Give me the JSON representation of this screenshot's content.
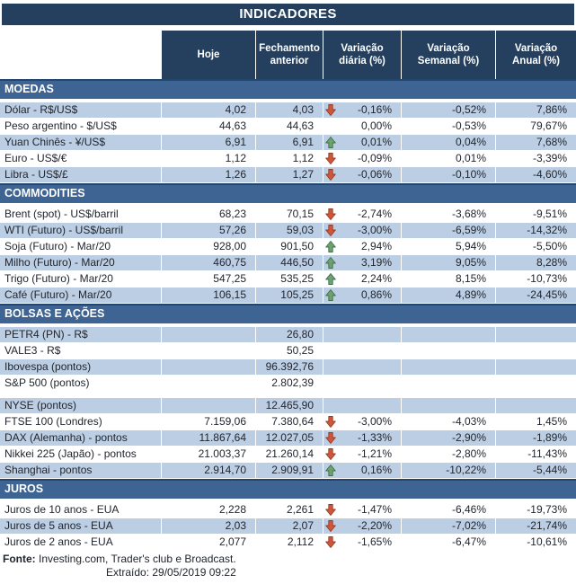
{
  "title": "INDICADORES",
  "columns": [
    "Hoje",
    "Fechamento anterior",
    "Variação diária (%)",
    "Variação Semanal (%)",
    "Variação Anual (%)"
  ],
  "sections": [
    {
      "name": "MOEDAS",
      "rows": [
        {
          "label": "Dólar - R$/US$",
          "hoje": "4,02",
          "fech": "4,03",
          "arrow": "down",
          "dia": "-0,16%",
          "sem": "-0,52%",
          "ano": "7,86%",
          "shade": true
        },
        {
          "label": "Peso argentino - $/US$",
          "hoje": "44,63",
          "fech": "44,63",
          "arrow": "none",
          "dia": "0,00%",
          "sem": "-0,53%",
          "ano": "79,67%",
          "shade": false
        },
        {
          "label": "Yuan Chinês - ¥/US$",
          "hoje": "6,91",
          "fech": "6,91",
          "arrow": "up",
          "dia": "0,01%",
          "sem": "0,04%",
          "ano": "7,68%",
          "shade": true
        },
        {
          "label": "Euro - US$/€",
          "hoje": "1,12",
          "fech": "1,12",
          "arrow": "down",
          "dia": "-0,09%",
          "sem": "0,01%",
          "ano": "-3,39%",
          "shade": false
        },
        {
          "label": "Libra - US$/£",
          "hoje": "1,26",
          "fech": "1,27",
          "arrow": "down",
          "dia": "-0,06%",
          "sem": "-0,10%",
          "ano": "-4,60%",
          "shade": true
        }
      ]
    },
    {
      "name": "COMMODITIES",
      "rows": [
        {
          "label": "Brent (spot) - US$/barril",
          "hoje": "68,23",
          "fech": "70,15",
          "arrow": "down",
          "dia": "-2,74%",
          "sem": "-3,68%",
          "ano": "-9,51%",
          "shade": false
        },
        {
          "label": "WTI (Futuro) - US$/barril",
          "hoje": "57,26",
          "fech": "59,03",
          "arrow": "down",
          "dia": "-3,00%",
          "sem": "-6,59%",
          "ano": "-14,32%",
          "shade": true
        },
        {
          "label": "Soja (Futuro) - Mar/20",
          "hoje": "928,00",
          "fech": "901,50",
          "arrow": "up",
          "dia": "2,94%",
          "sem": "5,94%",
          "ano": "-5,50%",
          "shade": false
        },
        {
          "label": "Milho (Futuro) - Mar/20",
          "hoje": "460,75",
          "fech": "446,50",
          "arrow": "up",
          "dia": "3,19%",
          "sem": "9,05%",
          "ano": "8,28%",
          "shade": true
        },
        {
          "label": "Trigo (Futuro) - Mar/20",
          "hoje": "547,25",
          "fech": "535,25",
          "arrow": "up",
          "dia": "2,24%",
          "sem": "8,15%",
          "ano": "-10,73%",
          "shade": false
        },
        {
          "label": "Café (Futuro) - Mar/20",
          "hoje": "106,15",
          "fech": "105,25",
          "arrow": "up",
          "dia": "0,86%",
          "sem": "4,89%",
          "ano": "-24,45%",
          "shade": true
        }
      ]
    },
    {
      "name": "BOLSAS E AÇÕES",
      "rows": [
        {
          "label": "PETR4 (PN) - R$",
          "hoje": "",
          "fech": "26,80",
          "arrow": "none",
          "dia": "",
          "sem": "",
          "ano": "",
          "shade": true
        },
        {
          "label": "VALE3 - R$",
          "hoje": "",
          "fech": "50,25",
          "arrow": "none",
          "dia": "",
          "sem": "",
          "ano": "",
          "shade": false
        },
        {
          "label": "Ibovespa (pontos)",
          "hoje": "",
          "fech": "96.392,76",
          "arrow": "none",
          "dia": "",
          "sem": "",
          "ano": "",
          "shade": true
        },
        {
          "label": "S&P 500 (pontos)",
          "hoje": "",
          "fech": "2.802,39",
          "arrow": "none",
          "dia": "",
          "sem": "",
          "ano": "",
          "shade": false
        },
        {
          "blank": true
        },
        {
          "label": "NYSE (pontos)",
          "hoje": "",
          "fech": "12.465,90",
          "arrow": "none",
          "dia": "",
          "sem": "",
          "ano": "",
          "shade": true
        },
        {
          "label": "FTSE 100 (Londres)",
          "hoje": "7.159,06",
          "fech": "7.380,64",
          "arrow": "down",
          "dia": "-3,00%",
          "sem": "-4,03%",
          "ano": "1,45%",
          "shade": false
        },
        {
          "label": "DAX (Alemanha) - pontos",
          "hoje": "11.867,64",
          "fech": "12.027,05",
          "arrow": "down",
          "dia": "-1,33%",
          "sem": "-2,90%",
          "ano": "-1,89%",
          "shade": true
        },
        {
          "label": "Nikkei 225 (Japão) - pontos",
          "hoje": "21.003,37",
          "fech": "21.260,14",
          "arrow": "down",
          "dia": "-1,21%",
          "sem": "-2,80%",
          "ano": "-11,43%",
          "shade": false
        },
        {
          "label": "Shanghai - pontos",
          "hoje": "2.914,70",
          "fech": "2.909,91",
          "arrow": "up",
          "dia": "0,16%",
          "sem": "-10,22%",
          "ano": "-5,44%",
          "shade": true
        }
      ]
    },
    {
      "name": "JUROS",
      "rows": [
        {
          "label": "Juros de 10 anos - EUA",
          "hoje": "2,228",
          "fech": "2,261",
          "arrow": "down",
          "dia": "-1,47%",
          "sem": "-6,46%",
          "ano": "-19,73%",
          "shade": false
        },
        {
          "label": "Juros de 5 anos - EUA",
          "hoje": "2,03",
          "fech": "2,07",
          "arrow": "down",
          "dia": "-2,20%",
          "sem": "-7,02%",
          "ano": "-21,74%",
          "shade": true
        },
        {
          "label": "Juros de 2 anos - EUA",
          "hoje": "2,077",
          "fech": "2,112",
          "arrow": "down",
          "dia": "-1,65%",
          "sem": "-6,47%",
          "ano": "-10,61%",
          "shade": false
        }
      ]
    }
  ],
  "footer": {
    "fonte_label": "Fonte:",
    "fonte_text": " Investing.com, Trader's club e Broadcast.",
    "extraido": "Extraído: 29/05/2019 09:22"
  },
  "icons": {
    "up": "up-arrow-icon",
    "down": "down-arrow-icon"
  },
  "colors": {
    "header_navy": "#24405E",
    "section_blue": "#3D6493",
    "row_light_blue": "#BCCEE4",
    "arrow_up_green": "#6FA070",
    "arrow_down_red": "#D0563B"
  }
}
